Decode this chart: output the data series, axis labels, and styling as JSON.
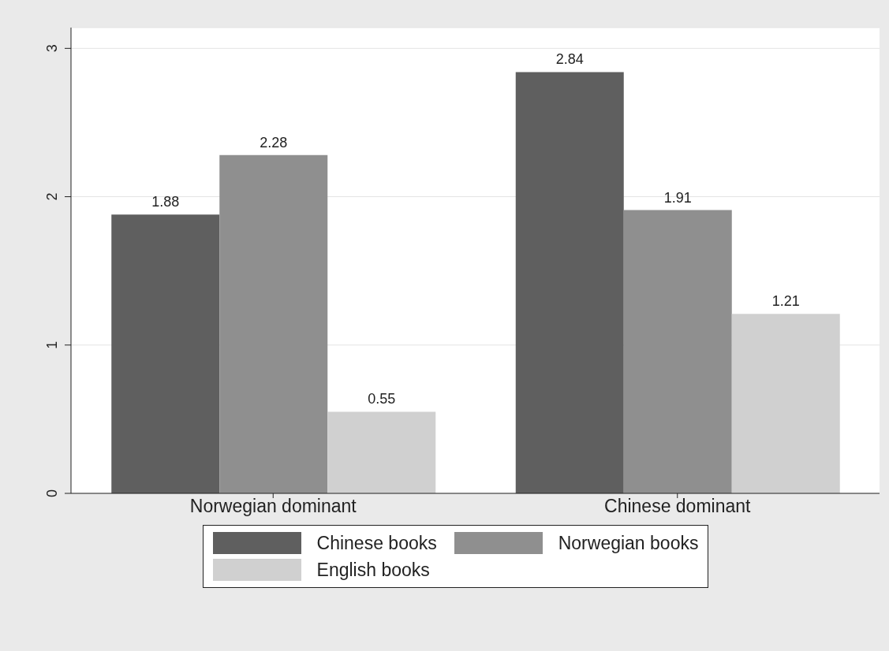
{
  "chart_data": {
    "type": "bar",
    "categories": [
      "Norwegian dominant",
      "Chinese dominant"
    ],
    "series": [
      {
        "name": "Chinese books",
        "color": "#5f5f5f",
        "values": [
          1.88,
          2.84
        ]
      },
      {
        "name": "Norwegian books",
        "color": "#8f8f8f",
        "values": [
          2.28,
          1.91
        ]
      },
      {
        "name": "English books",
        "color": "#d0d0d0",
        "values": [
          0.55,
          1.21
        ]
      }
    ],
    "ylim": [
      0,
      3.14
    ],
    "yticks": [
      0,
      1,
      2,
      3
    ],
    "grid": "y",
    "legend": "bottom",
    "data_labels": true
  }
}
